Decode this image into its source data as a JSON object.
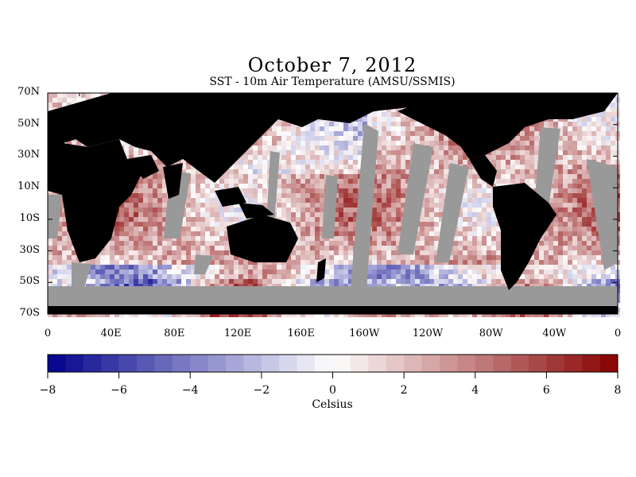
{
  "title": "October 7, 2012",
  "subtitle": "SST - 10m Air Temperature (AMSU/SSMIS)",
  "colors": {
    "land": "#000000",
    "nodata": "#999999",
    "cold": "#0000b8",
    "neutral": "#ffffff",
    "warm": "#880000"
  },
  "map": {
    "lat_range": [
      -70,
      70
    ],
    "lon_range": [
      0,
      360
    ],
    "lat_labels": [
      "70N",
      "50N",
      "30N",
      "10N",
      "10S",
      "30S",
      "50S",
      "70S"
    ],
    "lat_values": [
      70,
      50,
      30,
      10,
      -10,
      -30,
      -50,
      -70
    ],
    "lon_labels": [
      "0",
      "40E",
      "80E",
      "120E",
      "160E",
      "160W",
      "120W",
      "80W",
      "40W",
      "0"
    ],
    "lon_values": [
      0,
      40,
      80,
      120,
      160,
      200,
      240,
      280,
      320,
      360
    ]
  },
  "colorbar": {
    "min": -8,
    "max": 8,
    "step": 0.5,
    "labels": [
      "−8",
      "−6",
      "−4",
      "−2",
      "0",
      "2",
      "4",
      "6",
      "8"
    ],
    "units": "Celsius"
  }
}
